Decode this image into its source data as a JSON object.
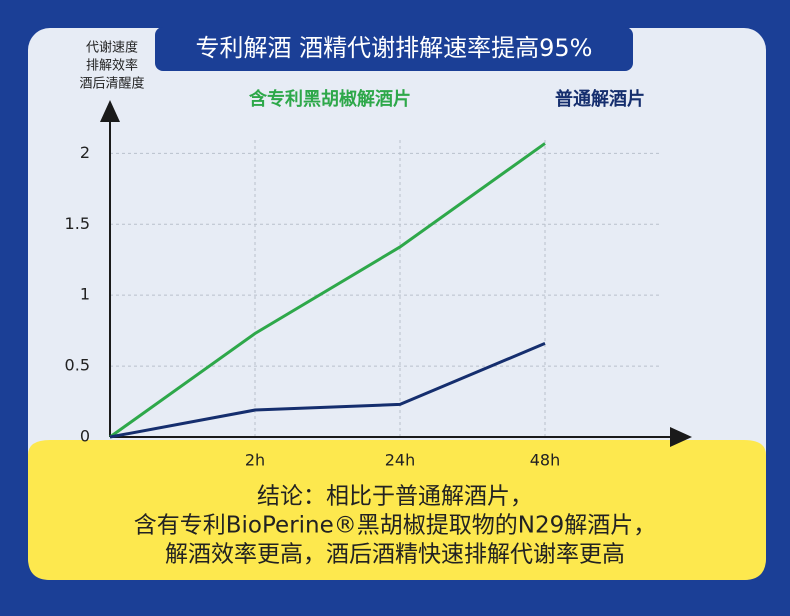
{
  "chart_data": {
    "type": "line",
    "title": "专利解酒 酒精代谢排解速率提高95%",
    "y_label": [
      "代谢速度",
      "排解效率",
      "酒后清醒度"
    ],
    "categories": [
      null,
      "2h",
      "24h",
      "48h"
    ],
    "series": [
      {
        "name": "含专利黑胡椒解酒片",
        "color": "#2ea84a",
        "values": [
          0,
          0.73,
          1.34,
          2.07
        ]
      },
      {
        "name": "普通解酒片",
        "color": "#152e6e",
        "values": [
          0,
          0.19,
          0.23,
          0.66
        ]
      }
    ],
    "ylim": [
      0,
      2.2
    ],
    "yticks": [
      0,
      0.5,
      1,
      1.5,
      2
    ],
    "grid": true,
    "conclusion": [
      "结论：相比于普通解酒片，",
      "含有专利BioPerine®黑胡椒提取物的N29解酒片，",
      "解酒效率更高，酒后酒精快速排解代谢率更高"
    ]
  }
}
